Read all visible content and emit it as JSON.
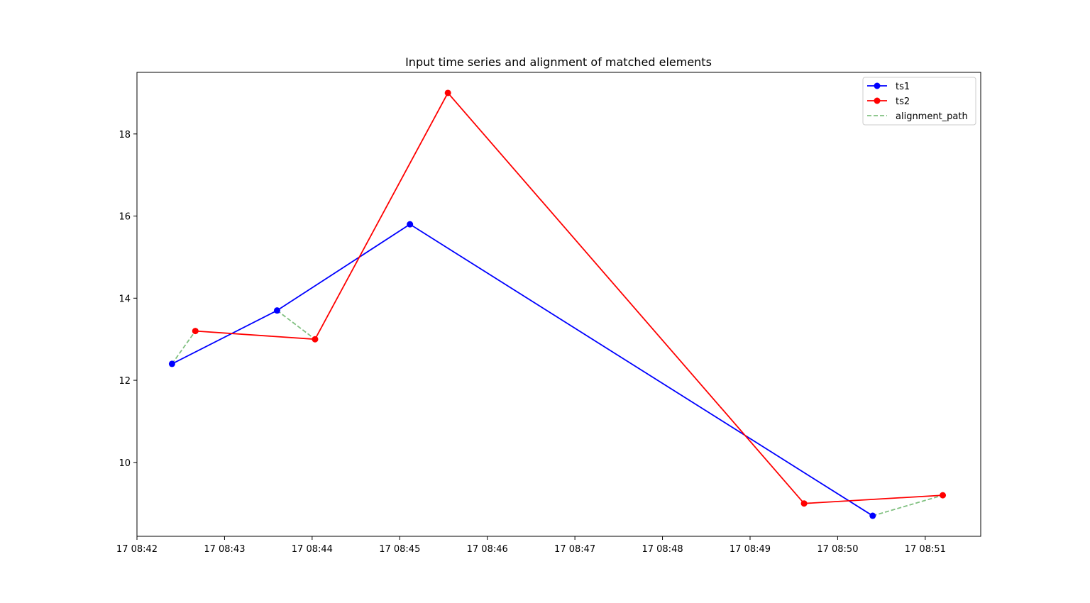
{
  "chart_data": {
    "type": "line",
    "title": "Input time series and alignment of matched elements",
    "xlabel": "",
    "ylabel": "",
    "x_axis_type": "time",
    "xlim": [
      "08:42:00",
      "08:51:38"
    ],
    "ylim": [
      8.2,
      19.5
    ],
    "x_ticks": [
      {
        "t": "08:42:00",
        "label": "17 08:42"
      },
      {
        "t": "08:43:00",
        "label": "17 08:43"
      },
      {
        "t": "08:44:00",
        "label": "17 08:44"
      },
      {
        "t": "08:45:00",
        "label": "17 08:45"
      },
      {
        "t": "08:46:00",
        "label": "17 08:46"
      },
      {
        "t": "08:47:00",
        "label": "17 08:47"
      },
      {
        "t": "08:48:00",
        "label": "17 08:48"
      },
      {
        "t": "08:49:00",
        "label": "17 08:49"
      },
      {
        "t": "08:50:00",
        "label": "17 08:50"
      },
      {
        "t": "08:51:00",
        "label": "17 08:51"
      }
    ],
    "y_ticks": [
      {
        "v": 10,
        "label": "10"
      },
      {
        "v": 12,
        "label": "12"
      },
      {
        "v": 14,
        "label": "14"
      },
      {
        "v": 16,
        "label": "16"
      },
      {
        "v": 18,
        "label": "18"
      }
    ],
    "grid": false,
    "legend_position": "top-right",
    "series": [
      {
        "name": "ts1",
        "color": "#0000ff",
        "style": "solid",
        "marker": "circle",
        "points": [
          {
            "t": "08:42:24",
            "y": 12.4
          },
          {
            "t": "08:43:36",
            "y": 13.7
          },
          {
            "t": "08:45:07",
            "y": 15.8
          },
          {
            "t": "08:50:24",
            "y": 8.7
          }
        ]
      },
      {
        "name": "ts2",
        "color": "#ff0000",
        "style": "solid",
        "marker": "circle",
        "points": [
          {
            "t": "08:42:40",
            "y": 13.2
          },
          {
            "t": "08:44:02",
            "y": 13.0
          },
          {
            "t": "08:45:33",
            "y": 19.0
          },
          {
            "t": "08:49:37",
            "y": 9.0
          },
          {
            "t": "08:51:12",
            "y": 9.2
          }
        ]
      }
    ],
    "alignment_path": {
      "name": "alignment_path",
      "color": "#80c080",
      "style": "dashed",
      "pairs": [
        [
          {
            "t": "08:42:24",
            "y": 12.4
          },
          {
            "t": "08:42:40",
            "y": 13.2
          }
        ],
        [
          {
            "t": "08:43:36",
            "y": 13.7
          },
          {
            "t": "08:44:02",
            "y": 13.0
          }
        ],
        [
          {
            "t": "08:50:24",
            "y": 8.7
          },
          {
            "t": "08:51:12",
            "y": 9.2
          }
        ]
      ]
    }
  }
}
